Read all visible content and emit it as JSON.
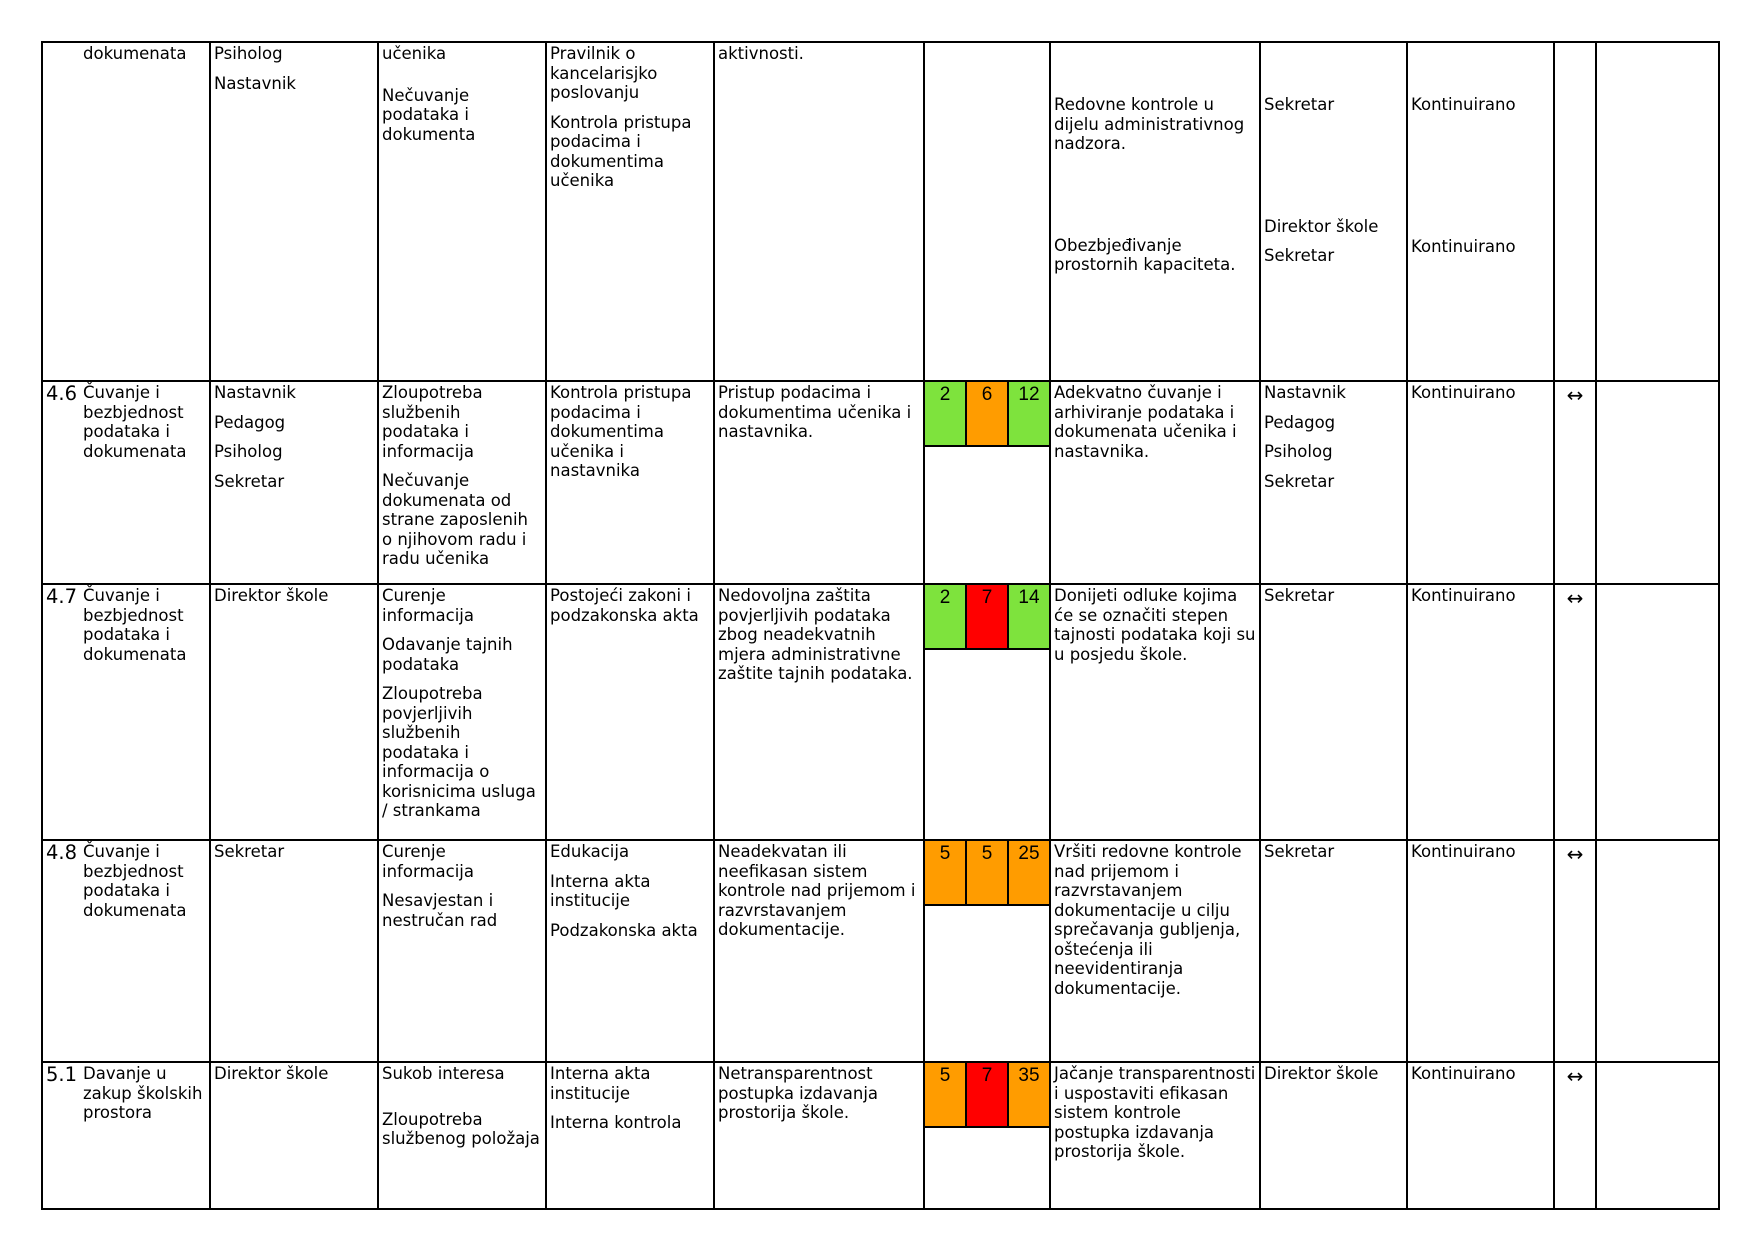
{
  "colors": {
    "green": "#7ee33d",
    "orange": "#ff9c00",
    "red": "#ff0000"
  },
  "continuation": {
    "area": "dokumenata",
    "responsible": [
      "Psiholog",
      "Nastavnik"
    ],
    "risks": [
      "učenika",
      "Nečuvanje podataka i dokumenta"
    ],
    "controls": [
      "Pravilnik o kancelarisjko poslovanju",
      "Kontrola pristupa podacima i dokumentima učenika"
    ],
    "cause": "aktivnosti.",
    "measures": [
      {
        "text": "Redovne kontrole u dijelu administrativnog nadzora.",
        "owners": [
          "Sekretar"
        ],
        "deadline": "Kontinuirano"
      },
      {
        "text": "Obezbjeđivanje prostornih kapaciteta.",
        "owners": [
          "Direktor škole",
          "Sekretar"
        ],
        "deadline": "Kontinuirano"
      }
    ]
  },
  "rows": [
    {
      "id": "4.6",
      "area": "Čuvanje i bezbjednost podataka i dokumenata",
      "responsible": [
        "Nastavnik",
        "Pedagog",
        "Psiholog",
        "Sekretar"
      ],
      "risks": [
        "Zloupotreba službenih podataka i informacija",
        "Nečuvanje dokumenata od strane zaposlenih o njihovom radu i radu učenika"
      ],
      "controls": [
        "Kontrola pristupa podacima i dokumentima učenika i nastavnika"
      ],
      "cause": "Pristup podacima i dokumentima učenika i nastavnika.",
      "scores": [
        {
          "v": "2",
          "c": "green"
        },
        {
          "v": "6",
          "c": "orange"
        },
        {
          "v": "12",
          "c": "green"
        }
      ],
      "measure": "Adekvatno čuvanje i arhiviranje podataka i dokumenata učenika i nastavnika.",
      "owners": [
        "Nastavnik",
        "Pedagog",
        "Psiholog",
        "Sekretar"
      ],
      "deadline": "Kontinuirano",
      "trend": "↔"
    },
    {
      "id": "4.7",
      "area": "Čuvanje i bezbjednost podataka i dokumenata",
      "responsible": [
        "Direktor škole"
      ],
      "risks": [
        "Curenje informacija",
        "Odavanje tajnih podataka",
        "Zloupotreba povjerljivih službenih podataka i informacija o korisnicima usluga / strankama"
      ],
      "controls": [
        "Postojeći zakoni i podzakonska akta"
      ],
      "cause": "Nedovoljna zaštita povjerljivih podataka zbog neadekvatnih mjera administrativne zaštite tajnih podataka.",
      "scores": [
        {
          "v": "2",
          "c": "green"
        },
        {
          "v": "7",
          "c": "red"
        },
        {
          "v": "14",
          "c": "green"
        }
      ],
      "measure": "Donijeti odluke kojima će se označiti stepen tajnosti podataka koji su u posjedu škole.",
      "owners": [
        "Sekretar"
      ],
      "deadline": "Kontinuirano",
      "trend": "↔"
    },
    {
      "id": "4.8",
      "area": "Čuvanje i bezbjednost podataka i dokumenata",
      "responsible": [
        "Sekretar"
      ],
      "risks": [
        "Curenje informacija",
        "Nesavjestan i nestručan rad"
      ],
      "controls": [
        "Edukacija",
        "Interna akta institucije",
        "Podzakonska akta"
      ],
      "cause": "Neadekvatan ili neefikasan sistem kontrole nad prijemom i razvrstavanjem dokumentacije.",
      "scores": [
        {
          "v": "5",
          "c": "orange"
        },
        {
          "v": "5",
          "c": "orange"
        },
        {
          "v": "25",
          "c": "orange"
        }
      ],
      "measure": "Vršiti redovne kontrole nad prijemom i razvrstavanjem dokumentacije u cilju sprečavanja gubljenja, oštećenja ili neevidentiranja dokumentacije.",
      "owners": [
        "Sekretar"
      ],
      "deadline": "Kontinuirano",
      "trend": "↔"
    },
    {
      "id": "5.1",
      "area": "Davanje u zakup školskih prostora",
      "responsible": [
        "Direktor škole"
      ],
      "risks": [
        "Sukob interesa",
        "Zloupotreba službenog položaja"
      ],
      "controls": [
        "Interna akta institucije",
        "Interna kontrola"
      ],
      "cause": "Netransparentnost postupka izdavanja prostorija škole.",
      "scores": [
        {
          "v": "5",
          "c": "orange"
        },
        {
          "v": "7",
          "c": "red"
        },
        {
          "v": "35",
          "c": "orange"
        }
      ],
      "measure": "Jačanje transparentnosti i uspostaviti efikasan sistem kontrole postupka izdavanja prostorija škole.",
      "owners": [
        "Direktor škole"
      ],
      "deadline": "Kontinuirano",
      "trend": "↔"
    }
  ]
}
